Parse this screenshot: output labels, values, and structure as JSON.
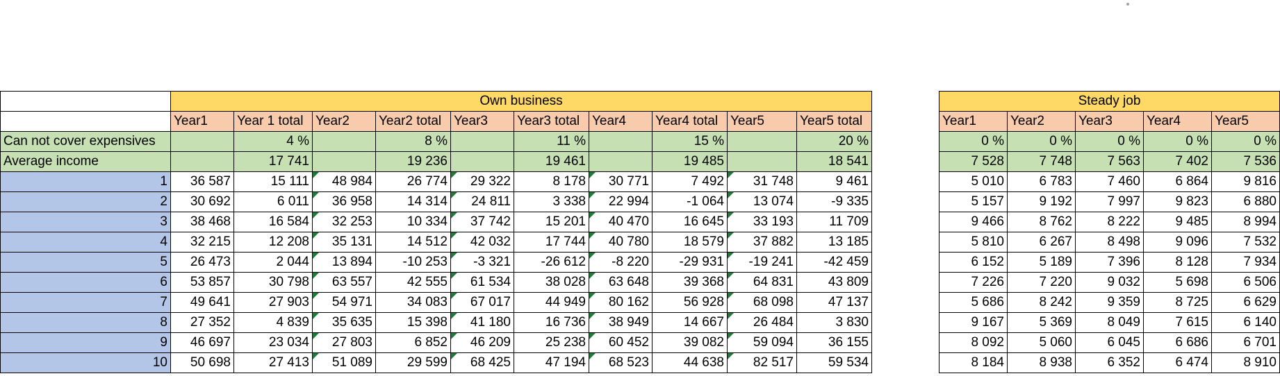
{
  "own": {
    "title": "Own business",
    "headers": [
      "Year1",
      "Year 1 total",
      "Year2",
      "Year2 total",
      "Year3",
      "Year3 total",
      "Year4",
      "Year4 total",
      "Year5",
      "Year5 total"
    ],
    "cover_label": "Can not cover expensives",
    "cover": [
      "",
      "4 %",
      "",
      "8 %",
      "",
      "11 %",
      "",
      "15 %",
      "",
      "20 %"
    ],
    "avg_label": "Average income",
    "avg": [
      "",
      "17 741",
      "",
      "19 236",
      "",
      "19 461",
      "",
      "19 485",
      "",
      "18 541"
    ],
    "rows": [
      [
        "36 587",
        "15 111",
        "48 984",
        "26 774",
        "29 322",
        "8 178",
        "30 771",
        "7 492",
        "31 748",
        "9 461"
      ],
      [
        "30 692",
        "6 011",
        "36 958",
        "14 314",
        "24 811",
        "3 338",
        "22 994",
        "-1 064",
        "13 074",
        "-9 335"
      ],
      [
        "38 468",
        "16 584",
        "32 253",
        "10 334",
        "37 742",
        "15 201",
        "40 470",
        "16 645",
        "33 193",
        "11 709"
      ],
      [
        "32 215",
        "12 208",
        "35 131",
        "14 512",
        "42 032",
        "17 744",
        "40 780",
        "18 579",
        "37 882",
        "13 185"
      ],
      [
        "26 473",
        "2 044",
        "13 894",
        "-10 253",
        "-3 321",
        "-26 612",
        "-8 220",
        "-29 931",
        "-19 241",
        "-42 459"
      ],
      [
        "53 857",
        "30 798",
        "63 557",
        "42 555",
        "61 534",
        "38 028",
        "63 648",
        "39 368",
        "64 831",
        "43 809"
      ],
      [
        "49 641",
        "27 903",
        "54 971",
        "34 083",
        "67 017",
        "44 949",
        "80 162",
        "56 928",
        "68 098",
        "47 137"
      ],
      [
        "27 352",
        "4 839",
        "35 635",
        "15 398",
        "41 180",
        "16 736",
        "38 949",
        "14 667",
        "26 484",
        "3 830"
      ],
      [
        "46 697",
        "23 034",
        "27 803",
        "6 852",
        "46 209",
        "25 238",
        "60 452",
        "39 082",
        "59 094",
        "36 155"
      ],
      [
        "50 698",
        "27 413",
        "51 089",
        "29 599",
        "68 425",
        "47 194",
        "68 523",
        "44 638",
        "82 517",
        "59 534"
      ]
    ],
    "row_numbers": [
      "1",
      "2",
      "3",
      "4",
      "5",
      "6",
      "7",
      "8",
      "9",
      "10"
    ]
  },
  "steady": {
    "title": "Steady job",
    "headers": [
      "Year1",
      "Year2",
      "Year3",
      "Year4",
      "Year5"
    ],
    "cover": [
      "0 %",
      "0 %",
      "0 %",
      "0 %",
      "0 %"
    ],
    "avg": [
      "7 528",
      "7 748",
      "7 563",
      "7 402",
      "7 536"
    ],
    "rows": [
      [
        "5 010",
        "6 783",
        "7 460",
        "6 864",
        "9 816"
      ],
      [
        "5 157",
        "9 192",
        "7 997",
        "9 823",
        "6 880"
      ],
      [
        "9 466",
        "8 762",
        "8 222",
        "9 485",
        "8 994"
      ],
      [
        "5 810",
        "6 267",
        "8 498",
        "9 096",
        "7 532"
      ],
      [
        "6 152",
        "5 189",
        "7 396",
        "8 128",
        "7 934"
      ],
      [
        "7 226",
        "7 220",
        "9 032",
        "5 698",
        "6 506"
      ],
      [
        "5 686",
        "8 242",
        "9 359",
        "8 725",
        "6 629"
      ],
      [
        "9 167",
        "5 369",
        "8 049",
        "7 615",
        "6 140"
      ],
      [
        "8 092",
        "5 060",
        "6 045",
        "6 686",
        "6 701"
      ],
      [
        "8 184",
        "8 938",
        "6 352",
        "6 474",
        "8 910"
      ]
    ]
  },
  "colors": {
    "header_yellow": "#ffd966",
    "header_peach": "#f8cbad",
    "summary_green": "#c6e0b4",
    "index_blue": "#b4c6e7",
    "error_triangle": "#1f7a3a"
  }
}
